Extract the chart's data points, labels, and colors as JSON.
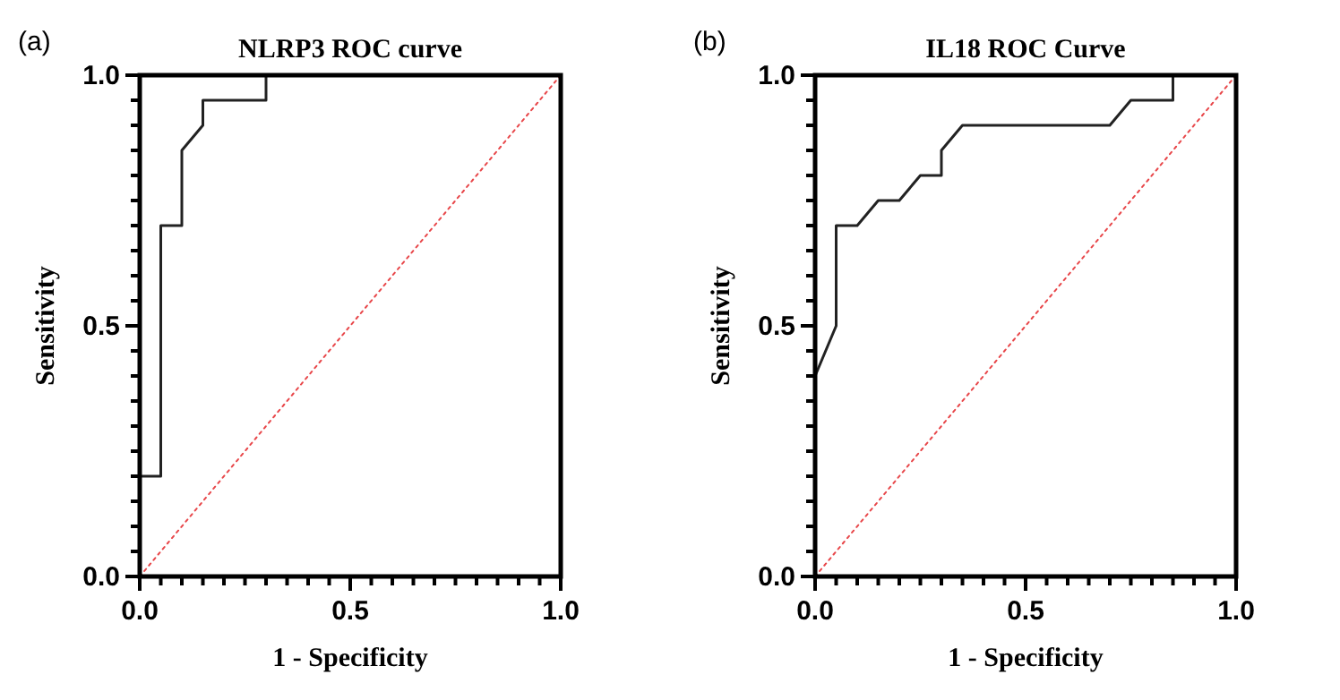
{
  "chart_data": [
    {
      "type": "line",
      "title": "NLRP3 ROC curve",
      "xlabel": "1 - Specificity",
      "ylabel": "Sensitivity",
      "annotations": [
        "(a)"
      ],
      "xlim": [
        0,
        1
      ],
      "ylim": [
        0,
        1
      ],
      "xticks": [
        {
          "value": 0,
          "label": "0.0"
        },
        {
          "value": 0.05,
          "label": null
        },
        {
          "value": 0.1,
          "label": null
        },
        {
          "value": 0.15,
          "label": null
        },
        {
          "value": 0.2,
          "label": null
        },
        {
          "value": 0.25,
          "label": null
        },
        {
          "value": 0.3,
          "label": null
        },
        {
          "value": 0.35,
          "label": null
        },
        {
          "value": 0.4,
          "label": null
        },
        {
          "value": 0.45,
          "label": null
        },
        {
          "value": 0.5,
          "label": "0.5"
        },
        {
          "value": 0.55,
          "label": null
        },
        {
          "value": 0.6,
          "label": null
        },
        {
          "value": 0.65,
          "label": null
        },
        {
          "value": 0.7,
          "label": null
        },
        {
          "value": 0.75,
          "label": null
        },
        {
          "value": 0.8,
          "label": null
        },
        {
          "value": 0.85,
          "label": null
        },
        {
          "value": 0.9,
          "label": null
        },
        {
          "value": 0.95,
          "label": null
        },
        {
          "value": 1,
          "label": "1.0"
        }
      ],
      "yticks": [
        {
          "value": 0,
          "label": "0.0"
        },
        {
          "value": 0.05,
          "label": null
        },
        {
          "value": 0.1,
          "label": null
        },
        {
          "value": 0.15,
          "label": null
        },
        {
          "value": 0.2,
          "label": null
        },
        {
          "value": 0.25,
          "label": null
        },
        {
          "value": 0.3,
          "label": null
        },
        {
          "value": 0.35,
          "label": null
        },
        {
          "value": 0.4,
          "label": null
        },
        {
          "value": 0.45,
          "label": null
        },
        {
          "value": 0.5,
          "label": "0.5"
        },
        {
          "value": 0.55,
          "label": null
        },
        {
          "value": 0.6,
          "label": null
        },
        {
          "value": 0.65,
          "label": null
        },
        {
          "value": 0.7,
          "label": null
        },
        {
          "value": 0.75,
          "label": null
        },
        {
          "value": 0.8,
          "label": null
        },
        {
          "value": 0.85,
          "label": null
        },
        {
          "value": 0.9,
          "label": null
        },
        {
          "value": 0.95,
          "label": null
        },
        {
          "value": 1,
          "label": "1.0"
        }
      ],
      "marker": "none",
      "grid": false,
      "series": [
        {
          "color": "#222222",
          "line_style": "solid",
          "x": [
            0,
            0,
            0.05,
            0.05,
            0.1,
            0.1,
            0.15,
            0.15,
            0.3,
            0.3,
            1
          ],
          "values": [
            0,
            0.2,
            0.2,
            0.7,
            0.7,
            0.85,
            0.9,
            0.95,
            0.95,
            1,
            1
          ]
        },
        {
          "color": "#e8474a",
          "line_style": "dotted",
          "x": [
            0,
            1
          ],
          "values": [
            0,
            1
          ]
        }
      ]
    },
    {
      "type": "line",
      "title": "IL18 ROC Curve",
      "xlabel": "1 - Specificity",
      "ylabel": "Sensitivity",
      "annotations": [
        "(b)"
      ],
      "xlim": [
        0,
        1
      ],
      "ylim": [
        0,
        1
      ],
      "xticks": [
        {
          "value": 0,
          "label": "0.0"
        },
        {
          "value": 0.05,
          "label": null
        },
        {
          "value": 0.1,
          "label": null
        },
        {
          "value": 0.15,
          "label": null
        },
        {
          "value": 0.2,
          "label": null
        },
        {
          "value": 0.25,
          "label": null
        },
        {
          "value": 0.3,
          "label": null
        },
        {
          "value": 0.35,
          "label": null
        },
        {
          "value": 0.4,
          "label": null
        },
        {
          "value": 0.45,
          "label": null
        },
        {
          "value": 0.5,
          "label": "0.5"
        },
        {
          "value": 0.55,
          "label": null
        },
        {
          "value": 0.6,
          "label": null
        },
        {
          "value": 0.65,
          "label": null
        },
        {
          "value": 0.7,
          "label": null
        },
        {
          "value": 0.75,
          "label": null
        },
        {
          "value": 0.8,
          "label": null
        },
        {
          "value": 0.85,
          "label": null
        },
        {
          "value": 0.9,
          "label": null
        },
        {
          "value": 0.95,
          "label": null
        },
        {
          "value": 1,
          "label": "1.0"
        }
      ],
      "yticks": [
        {
          "value": 0,
          "label": "0.0"
        },
        {
          "value": 0.05,
          "label": null
        },
        {
          "value": 0.1,
          "label": null
        },
        {
          "value": 0.15,
          "label": null
        },
        {
          "value": 0.2,
          "label": null
        },
        {
          "value": 0.25,
          "label": null
        },
        {
          "value": 0.3,
          "label": null
        },
        {
          "value": 0.35,
          "label": null
        },
        {
          "value": 0.4,
          "label": null
        },
        {
          "value": 0.45,
          "label": null
        },
        {
          "value": 0.5,
          "label": "0.5"
        },
        {
          "value": 0.55,
          "label": null
        },
        {
          "value": 0.6,
          "label": null
        },
        {
          "value": 0.65,
          "label": null
        },
        {
          "value": 0.7,
          "label": null
        },
        {
          "value": 0.75,
          "label": null
        },
        {
          "value": 0.8,
          "label": null
        },
        {
          "value": 0.85,
          "label": null
        },
        {
          "value": 0.9,
          "label": null
        },
        {
          "value": 0.95,
          "label": null
        },
        {
          "value": 1,
          "label": "1.0"
        }
      ],
      "marker": "none",
      "grid": false,
      "series": [
        {
          "color": "#222222",
          "line_style": "solid",
          "x": [
            0,
            0.05,
            0.05,
            0.1,
            0.15,
            0.2,
            0.25,
            0.3,
            0.3,
            0.35,
            0.7,
            0.75,
            0.85,
            0.85,
            1
          ],
          "values": [
            0.4,
            0.5,
            0.7,
            0.7,
            0.75,
            0.75,
            0.8,
            0.8,
            0.85,
            0.9,
            0.9,
            0.95,
            0.95,
            1,
            1
          ]
        },
        {
          "color": "#e8474a",
          "line_style": "dotted",
          "x": [
            0,
            1
          ],
          "values": [
            0,
            1
          ]
        }
      ]
    }
  ]
}
